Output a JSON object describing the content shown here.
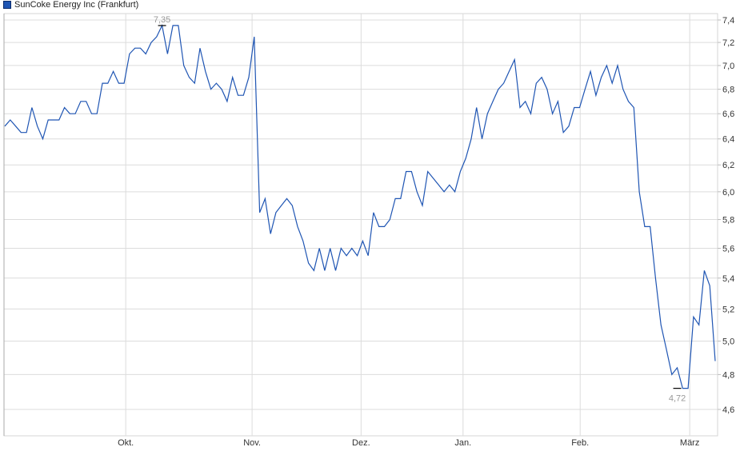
{
  "chart_data": {
    "type": "line",
    "legend": {
      "label": "SunCoke Energy Inc (Frankfurt)",
      "position": "top-left"
    },
    "series_color": "#1f55b3",
    "y_scale": "log",
    "ylim": [
      4.55,
      7.45
    ],
    "y_ticks": [
      "7,4",
      "7,2",
      "7,0",
      "6,8",
      "6,6",
      "6,4",
      "6,2",
      "6,0",
      "5,8",
      "5,6",
      "5,4",
      "5,2",
      "5,0",
      "4,8",
      "4,6"
    ],
    "y_tick_values": [
      7.4,
      7.2,
      7.0,
      6.8,
      6.6,
      6.4,
      6.2,
      6.0,
      5.8,
      5.6,
      5.4,
      5.2,
      5.0,
      4.8,
      4.6
    ],
    "x_ticks": [
      {
        "label": "Okt.",
        "index": 22.3
      },
      {
        "label": "Nov.",
        "index": 45.6
      },
      {
        "label": "Dez.",
        "index": 65.7
      },
      {
        "label": "Jan.",
        "index": 84.5
      },
      {
        "label": "Feb.",
        "index": 106.1
      },
      {
        "label": "März",
        "index": 126.3
      }
    ],
    "grid": true,
    "annotations": [
      {
        "label": "7,35",
        "value": 7.35,
        "index": 29
      },
      {
        "label": "4,72",
        "value": 4.72,
        "index": 124
      }
    ],
    "values": [
      6.5,
      6.55,
      6.5,
      6.45,
      6.45,
      6.65,
      6.5,
      6.4,
      6.55,
      6.55,
      6.55,
      6.65,
      6.6,
      6.6,
      6.7,
      6.7,
      6.6,
      6.6,
      6.85,
      6.85,
      6.95,
      6.85,
      6.85,
      7.1,
      7.15,
      7.15,
      7.1,
      7.2,
      7.25,
      7.35,
      7.1,
      7.35,
      7.35,
      7.0,
      6.9,
      6.85,
      7.15,
      6.95,
      6.8,
      6.85,
      6.8,
      6.7,
      6.9,
      6.75,
      6.75,
      6.9,
      7.25,
      5.85,
      5.95,
      5.7,
      5.85,
      5.9,
      5.95,
      5.9,
      5.75,
      5.65,
      5.5,
      5.45,
      5.6,
      5.45,
      5.6,
      5.45,
      5.6,
      5.55,
      5.6,
      5.55,
      5.65,
      5.55,
      5.85,
      5.75,
      5.75,
      5.8,
      5.95,
      5.95,
      6.15,
      6.15,
      6.0,
      5.9,
      6.15,
      6.1,
      6.05,
      6.0,
      6.05,
      6.0,
      6.15,
      6.25,
      6.4,
      6.65,
      6.4,
      6.6,
      6.7,
      6.8,
      6.85,
      6.95,
      7.05,
      6.65,
      6.7,
      6.6,
      6.85,
      6.9,
      6.8,
      6.6,
      6.7,
      6.45,
      6.5,
      6.65,
      6.65,
      6.8,
      6.95,
      6.75,
      6.9,
      7.0,
      6.85,
      7.0,
      6.8,
      6.7,
      6.65,
      6.0,
      5.75,
      5.75,
      5.4,
      5.1,
      4.95,
      4.8,
      4.84,
      4.72,
      4.72,
      5.15,
      5.1,
      5.45,
      5.35,
      4.88
    ]
  }
}
